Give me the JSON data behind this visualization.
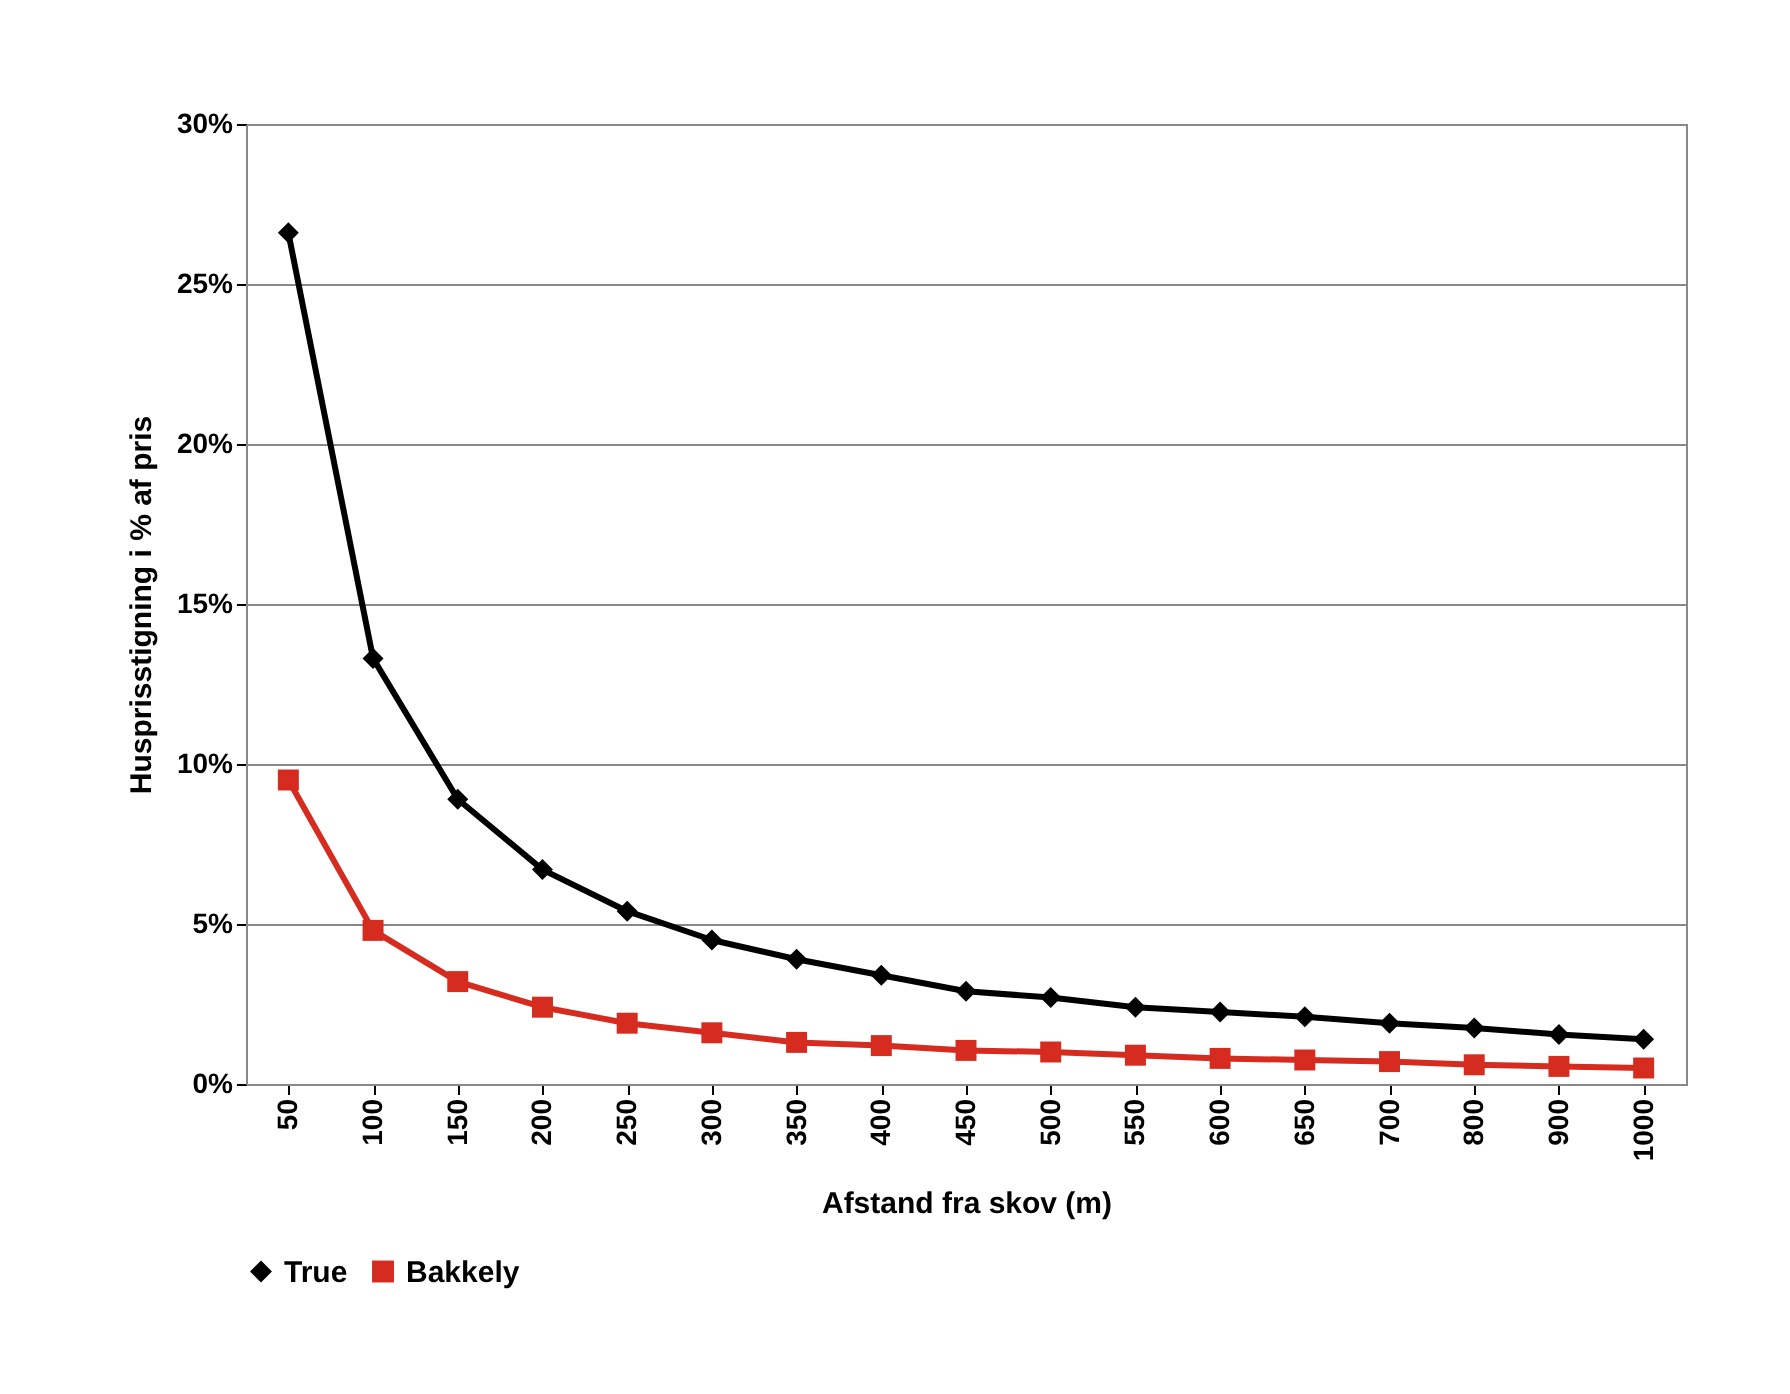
{
  "chart_data": {
    "type": "line",
    "xlabel": "Afstand fra skov  (m)",
    "ylabel": "Husprisstigning i % af pris",
    "categories": [
      "50",
      "100",
      "150",
      "200",
      "250",
      "300",
      "350",
      "400",
      "450",
      "500",
      "550",
      "600",
      "650",
      "700",
      "800",
      "900",
      "1000"
    ],
    "series": [
      {
        "name": "True",
        "color": "#000000",
        "marker": "diamond",
        "values": [
          26.6,
          13.3,
          8.9,
          6.7,
          5.4,
          4.5,
          3.9,
          3.4,
          2.9,
          2.7,
          2.4,
          2.25,
          2.1,
          1.9,
          1.75,
          1.55,
          1.4
        ]
      },
      {
        "name": "Bakkely",
        "color": "#d62b1f",
        "marker": "square",
        "values": [
          9.5,
          4.8,
          3.2,
          2.4,
          1.9,
          1.6,
          1.3,
          1.2,
          1.05,
          1.0,
          0.9,
          0.8,
          0.75,
          0.7,
          0.6,
          0.55,
          0.5
        ]
      }
    ],
    "ylim": [
      0,
      30
    ],
    "yticks": [
      {
        "value": 0,
        "label": "0%"
      },
      {
        "value": 5,
        "label": "5%"
      },
      {
        "value": 10,
        "label": "10%"
      },
      {
        "value": 15,
        "label": "15%"
      },
      {
        "value": 20,
        "label": "20%"
      },
      {
        "value": 25,
        "label": "25%"
      },
      {
        "value": 30,
        "label": "30%"
      }
    ],
    "grid": "y",
    "legend": "bottom",
    "line_style": "solid"
  }
}
